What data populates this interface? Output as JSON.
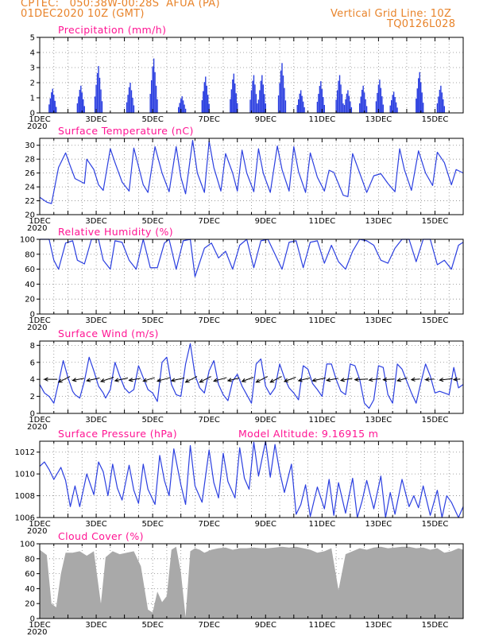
{
  "header": {
    "line1": "CPTEC:   050:38W-00:28S  AFUA (PA)",
    "line2": "01DEC2020 10Z (GMT)",
    "right1": "Vertical Grid Line: 10Z",
    "right2": "TQ0126L028"
  },
  "x_labels": [
    "1DEC",
    "3DEC",
    "5DEC",
    "7DEC",
    "9DEC",
    "11DEC",
    "13DEC",
    "15DEC"
  ],
  "x_year": "2020",
  "colors": {
    "title": "#ff1493",
    "header": "#e8832a",
    "line": "#2b3fe0",
    "cloud": "#a9a9a9",
    "wind_arrow": "#000000"
  },
  "chart_data": [
    {
      "type": "bar",
      "title": "Precipitation (mm/h)",
      "ylim": [
        0,
        5
      ],
      "yticks": [
        0,
        1,
        2,
        3,
        4,
        5
      ],
      "x_unit": "hours since 01DEC2020 10Z",
      "events": [
        [
          12,
          1.6
        ],
        [
          36,
          1.8
        ],
        [
          51,
          3.1
        ],
        [
          78,
          2.0
        ],
        [
          98,
          3.6
        ],
        [
          122,
          1.1
        ],
        [
          142,
          2.4
        ],
        [
          166,
          2.6
        ],
        [
          183,
          2.5
        ],
        [
          190,
          2.5
        ],
        [
          207,
          3.3
        ],
        [
          223,
          1.5
        ],
        [
          240,
          2.1
        ],
        [
          256,
          2.5
        ],
        [
          263,
          1.5
        ],
        [
          276,
          1.8
        ],
        [
          290,
          2.2
        ],
        [
          302,
          1.4
        ],
        [
          324,
          2.7
        ],
        [
          342,
          1.8
        ]
      ]
    },
    {
      "type": "line",
      "title": "Surface Temperature (nC)",
      "ylim": [
        20,
        31
      ],
      "yticks": [
        20,
        22,
        24,
        26,
        28,
        30
      ],
      "x": [
        0,
        6,
        10,
        16,
        22,
        26,
        30,
        38,
        40,
        46,
        50,
        54,
        60,
        64,
        70,
        76,
        80,
        88,
        92,
        98,
        104,
        110,
        116,
        120,
        124,
        130,
        134,
        140,
        144,
        148,
        154,
        158,
        164,
        168,
        172,
        176,
        182,
        186,
        190,
        196,
        202,
        206,
        212,
        216,
        220,
        226,
        230,
        236,
        242,
        246,
        250,
        258,
        262,
        266,
        272,
        278,
        284,
        290,
        296,
        302,
        306,
        310,
        316,
        322,
        328,
        334,
        338,
        344,
        350,
        354,
        360
      ],
      "y": [
        22.5,
        21.8,
        21.6,
        26.8,
        28.9,
        27.0,
        25.2,
        24.5,
        28.0,
        26.5,
        24.3,
        23.5,
        29.5,
        27.5,
        24.7,
        23.4,
        29.6,
        24.3,
        23.2,
        29.8,
        26.0,
        23.3,
        29.8,
        25.4,
        23.0,
        30.7,
        26.0,
        23.2,
        30.6,
        26.8,
        23.4,
        28.8,
        26.0,
        23.4,
        29.3,
        26.0,
        23.3,
        29.5,
        26.0,
        23.2,
        29.9,
        26.5,
        23.4,
        29.8,
        26.2,
        23.2,
        28.9,
        25.4,
        23.4,
        26.4,
        26.1,
        22.8,
        22.6,
        28.8,
        26.0,
        23.2,
        25.6,
        25.9,
        24.5,
        23.3,
        29.5,
        26.5,
        23.5,
        29.2,
        26.0,
        24.2,
        29.0,
        27.5,
        24.3,
        26.5,
        26.0
      ]
    },
    {
      "type": "line",
      "title": "Relative Humidity (%)",
      "ylim": [
        0,
        100
      ],
      "yticks": [
        0,
        20,
        40,
        60,
        80,
        100
      ],
      "x": [
        0,
        8,
        12,
        16,
        22,
        28,
        32,
        38,
        44,
        50,
        54,
        60,
        64,
        70,
        76,
        82,
        88,
        94,
        100,
        106,
        110,
        116,
        122,
        128,
        132,
        140,
        146,
        152,
        158,
        164,
        170,
        176,
        182,
        188,
        194,
        200,
        206,
        212,
        218,
        224,
        230,
        236,
        242,
        248,
        254,
        260,
        266,
        272,
        278,
        284,
        290,
        296,
        302,
        308,
        314,
        320,
        326,
        332,
        338,
        344,
        350,
        356,
        360
      ],
      "y": [
        100,
        100,
        72,
        60,
        95,
        98,
        72,
        67,
        100,
        100,
        72,
        60,
        98,
        96,
        72,
        60,
        100,
        62,
        62,
        95,
        100,
        60,
        98,
        100,
        50,
        88,
        95,
        75,
        84,
        60,
        92,
        100,
        62,
        98,
        100,
        80,
        60,
        96,
        98,
        62,
        96,
        98,
        68,
        92,
        70,
        60,
        84,
        100,
        98,
        92,
        72,
        68,
        88,
        100,
        100,
        70,
        100,
        100,
        66,
        72,
        60,
        92,
        96
      ]
    },
    {
      "type": "line",
      "title": "Surface Wind (m/s)",
      "ylim": [
        0,
        8.5
      ],
      "yticks": [
        0,
        2,
        4,
        6,
        8
      ],
      "x": [
        0,
        4,
        8,
        12,
        16,
        20,
        24,
        28,
        30,
        34,
        38,
        42,
        46,
        50,
        54,
        56,
        60,
        64,
        68,
        72,
        76,
        80,
        84,
        88,
        92,
        96,
        100,
        104,
        108,
        112,
        116,
        120,
        124,
        128,
        132,
        136,
        140,
        144,
        148,
        152,
        156,
        160,
        164,
        168,
        172,
        176,
        180,
        184,
        188,
        192,
        196,
        200,
        204,
        208,
        212,
        216,
        220,
        224,
        228,
        232,
        236,
        240,
        244,
        248,
        252,
        256,
        260,
        264,
        268,
        272,
        276,
        280,
        284,
        288,
        292,
        296,
        300,
        304,
        308,
        312,
        316,
        320,
        324,
        328,
        332,
        336,
        340,
        344,
        348,
        352,
        356,
        360
      ],
      "y": [
        3.4,
        2.4,
        2.0,
        1.2,
        3.6,
        6.2,
        4.2,
        2.6,
        2.2,
        1.8,
        3.8,
        6.6,
        5.0,
        3.2,
        2.4,
        1.8,
        2.8,
        6.0,
        4.4,
        3.0,
        2.4,
        2.8,
        5.6,
        4.2,
        2.8,
        2.4,
        1.4,
        6.0,
        6.6,
        3.4,
        2.2,
        2.0,
        5.8,
        8.2,
        4.5,
        3.0,
        2.4,
        5.0,
        6.2,
        3.4,
        2.2,
        1.5,
        3.8,
        4.6,
        3.2,
        2.2,
        1.2,
        5.8,
        6.4,
        3.2,
        2.2,
        3.0,
        5.8,
        4.2,
        3.0,
        2.4,
        1.6,
        5.6,
        5.2,
        3.5,
        2.8,
        2.0,
        5.8,
        5.8,
        4.0,
        2.6,
        2.2,
        5.8,
        5.6,
        4.0,
        1.2,
        0.6,
        1.6,
        5.6,
        5.4,
        2.2,
        1.2,
        5.8,
        5.2,
        3.8,
        2.4,
        1.2,
        3.6,
        5.8,
        4.4,
        2.4,
        2.6,
        2.4,
        2.2,
        5.4,
        3.0,
        3.4
      ],
      "arrows_x": [
        4,
        16,
        28,
        40,
        52,
        64,
        76,
        88,
        100,
        112,
        124,
        136,
        148,
        160,
        172,
        184,
        196,
        208,
        220,
        232,
        244,
        256,
        268,
        280,
        292,
        304,
        316,
        328,
        340,
        352
      ],
      "arrows_u": [
        1.8,
        1.6,
        1.6,
        1.8,
        1.8,
        1.8,
        1.6,
        1.6,
        1.8,
        1.8,
        1.6,
        1.6,
        1.8,
        1.6,
        1.6,
        1.6,
        1.6,
        1.6,
        1.6,
        1.8,
        1.6,
        1.6,
        1.8,
        1.6,
        1.6,
        1.4,
        1.2,
        1.2,
        1.8,
        0.9
      ],
      "arrows_v": [
        0,
        0.8,
        0.3,
        0.4,
        0.6,
        0.4,
        0.3,
        0.5,
        0.5,
        0.4,
        0.8,
        0.8,
        0.5,
        0.4,
        0.6,
        0.8,
        0.8,
        0.6,
        0.4,
        0.4,
        0.3,
        0.3,
        0.1,
        0.2,
        0.1,
        0.4,
        0.1,
        0.1,
        0.2,
        0.1
      ]
    },
    {
      "type": "line",
      "title": "Surface Pressure (hPa)",
      "subtitle": "Model Altitude: 9.16915 m",
      "ylim": [
        1006,
        1013
      ],
      "yticks": [
        1006,
        1008,
        1010,
        1012
      ],
      "x": [
        0,
        4,
        8,
        12,
        18,
        22,
        26,
        30,
        34,
        40,
        46,
        50,
        54,
        58,
        62,
        66,
        70,
        76,
        80,
        84,
        88,
        92,
        98,
        102,
        106,
        110,
        114,
        120,
        124,
        128,
        132,
        138,
        144,
        148,
        152,
        156,
        160,
        166,
        170,
        174,
        178,
        182,
        186,
        192,
        196,
        200,
        204,
        208,
        214,
        218,
        222,
        226,
        230,
        236,
        242,
        246,
        250,
        254,
        260,
        266,
        270,
        274,
        278,
        284,
        290,
        294,
        298,
        302,
        308,
        314,
        318,
        322,
        326,
        332,
        338,
        342,
        346,
        350,
        356,
        360
      ],
      "y": [
        1010.7,
        1011.1,
        1010.4,
        1009.5,
        1010.6,
        1009.4,
        1007.0,
        1008.9,
        1007.0,
        1010.0,
        1008.1,
        1011.1,
        1010.2,
        1008.0,
        1010.9,
        1008.7,
        1007.6,
        1010.8,
        1008.5,
        1007.3,
        1010.9,
        1008.6,
        1007.2,
        1011.7,
        1009.4,
        1008.0,
        1012.3,
        1009.0,
        1007.2,
        1012.6,
        1008.9,
        1007.4,
        1012.2,
        1009.2,
        1007.8,
        1011.9,
        1009.3,
        1007.8,
        1012.4,
        1009.6,
        1008.6,
        1012.9,
        1009.8,
        1013.0,
        1009.7,
        1012.7,
        1010.2,
        1008.3,
        1010.9,
        1006.3,
        1007.2,
        1009.0,
        1006.1,
        1008.8,
        1006.8,
        1009.5,
        1006.2,
        1009.2,
        1006.4,
        1009.6,
        1005.9,
        1007.5,
        1009.4,
        1006.8,
        1009.8,
        1006.0,
        1008.3,
        1006.3,
        1009.5,
        1007.0,
        1008.0,
        1006.9,
        1008.9,
        1006.2,
        1008.5,
        1005.8,
        1008.0,
        1007.4,
        1005.9,
        1007.0
      ]
    },
    {
      "type": "bar",
      "title": "Cloud Cover (%)",
      "ylim": [
        0,
        100
      ],
      "yticks": [
        0,
        20,
        40,
        60,
        80,
        100
      ],
      "x": [
        0,
        6,
        10,
        14,
        18,
        22,
        28,
        34,
        40,
        46,
        52,
        56,
        62,
        68,
        74,
        80,
        86,
        92,
        96,
        100,
        104,
        108,
        112,
        116,
        120,
        124,
        128,
        132,
        136,
        140,
        146,
        152,
        158,
        164,
        170,
        176,
        182,
        188,
        194,
        200,
        206,
        212,
        218,
        224,
        230,
        236,
        242,
        248,
        254,
        260,
        266,
        272,
        278,
        284,
        290,
        296,
        302,
        308,
        314,
        320,
        326,
        332,
        338,
        344,
        350,
        356,
        360
      ],
      "y": [
        92,
        85,
        20,
        15,
        60,
        88,
        88,
        90,
        84,
        90,
        20,
        82,
        90,
        86,
        88,
        90,
        70,
        12,
        8,
        36,
        22,
        30,
        92,
        96,
        62,
        2,
        90,
        94,
        92,
        88,
        92,
        94,
        95,
        92,
        94,
        94,
        95,
        94,
        94,
        95,
        96,
        95,
        96,
        94,
        92,
        88,
        90,
        94,
        38,
        86,
        90,
        94,
        92,
        95,
        96,
        94,
        95,
        96,
        96,
        94,
        95,
        92,
        94,
        88,
        90,
        94,
        92
      ]
    }
  ]
}
